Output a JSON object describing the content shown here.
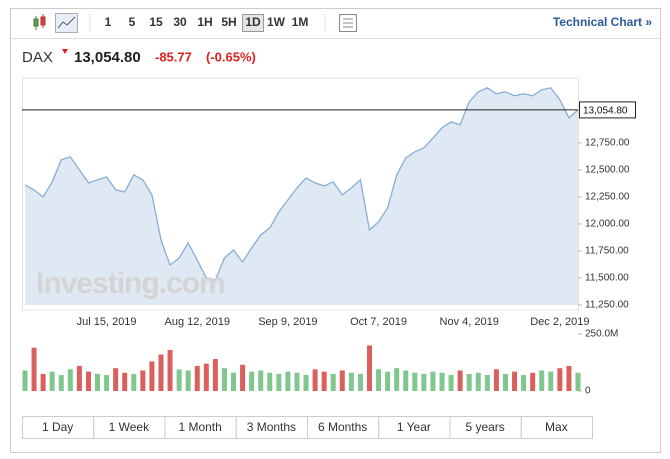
{
  "toolbar": {
    "intervals": [
      "1",
      "5",
      "15",
      "30",
      "1H",
      "5H",
      "1D",
      "1W",
      "1M"
    ],
    "selected": "1D",
    "link": "Technical Chart »"
  },
  "header": {
    "symbol": "DAX",
    "price": "13,054.80",
    "change": "-85.77",
    "change_pct": "(-0.65%)"
  },
  "ranges": [
    "1 Day",
    "1 Week",
    "1 Month",
    "3 Months",
    "6 Months",
    "1 Year",
    "5 years",
    "Max"
  ],
  "chart_data": [
    {
      "type": "line",
      "watermark": "Investing.com",
      "color": "#88aed6",
      "fill": "#dfe9f4",
      "categories": [
        null,
        null,
        null,
        null,
        null,
        null,
        null,
        null,
        null,
        "Jul 15, 2019",
        null,
        null,
        null,
        null,
        null,
        null,
        null,
        null,
        null,
        "Aug 12, 2019",
        null,
        null,
        null,
        null,
        null,
        null,
        null,
        null,
        null,
        "Sep 9, 2019",
        null,
        null,
        null,
        null,
        null,
        null,
        null,
        null,
        null,
        "Oct 7, 2019",
        null,
        null,
        null,
        null,
        null,
        null,
        null,
        null,
        null,
        "Nov 4, 2019",
        null,
        null,
        null,
        null,
        null,
        null,
        null,
        null,
        null,
        "Dec 2, 2019",
        null,
        null
      ],
      "values": [
        12361,
        12315,
        12250,
        12389,
        12593,
        12620,
        12500,
        12380,
        12407,
        12435,
        12315,
        12296,
        12454,
        12407,
        12269,
        11852,
        11620,
        11685,
        11824,
        11667,
        11500,
        11481,
        11685,
        11759,
        11648,
        11778,
        11898,
        11963,
        12111,
        12222,
        12333,
        12426,
        12380,
        12352,
        12389,
        12269,
        12333,
        12407,
        11944,
        12019,
        12148,
        12454,
        12611,
        12667,
        12704,
        12796,
        12889,
        12944,
        12917,
        13130,
        13222,
        13259,
        13204,
        13222,
        13185,
        13204,
        13185,
        13241,
        13259,
        13148,
        12981,
        13055
      ],
      "last_value": 13054.8,
      "last_label": "13,054.80",
      "ylim": [
        11250,
        13350
      ],
      "yticks": [
        {
          "value": 11250,
          "label": "11,250.00"
        },
        {
          "value": 11500,
          "label": "11,500.00"
        },
        {
          "value": 11750,
          "label": "11,750.00"
        },
        {
          "value": 12000,
          "label": "12,000.00"
        },
        {
          "value": 12250,
          "label": "12,250.00"
        },
        {
          "value": 12500,
          "label": "12,500.00"
        },
        {
          "value": 12750,
          "label": "12,750.00"
        }
      ]
    },
    {
      "type": "bar",
      "values": [
        90,
        190,
        75,
        85,
        70,
        95,
        110,
        85,
        75,
        70,
        100,
        80,
        75,
        90,
        130,
        160,
        180,
        95,
        90,
        110,
        120,
        140,
        100,
        80,
        115,
        85,
        90,
        80,
        75,
        85,
        80,
        70,
        95,
        85,
        75,
        90,
        80,
        75,
        200,
        95,
        85,
        100,
        90,
        80,
        75,
        85,
        80,
        70,
        90,
        75,
        80,
        70,
        95,
        75,
        85,
        70,
        80,
        90,
        85,
        100,
        110,
        80
      ],
      "colors": [
        "#7fc68f",
        "#d9605c",
        "#d9605c",
        "#7fc68f",
        "#7fc68f",
        "#7fc68f",
        "#d9605c",
        "#d9605c",
        "#7fc68f",
        "#7fc68f",
        "#d9605c",
        "#d9605c",
        "#7fc68f",
        "#d9605c",
        "#d9605c",
        "#d9605c",
        "#d9605c",
        "#7fc68f",
        "#7fc68f",
        "#d9605c",
        "#d9605c",
        "#d9605c",
        "#7fc68f",
        "#7fc68f",
        "#d9605c",
        "#7fc68f",
        "#7fc68f",
        "#7fc68f",
        "#7fc68f",
        "#7fc68f",
        "#7fc68f",
        "#7fc68f",
        "#d9605c",
        "#d9605c",
        "#7fc68f",
        "#d9605c",
        "#7fc68f",
        "#7fc68f",
        "#d9605c",
        "#7fc68f",
        "#7fc68f",
        "#7fc68f",
        "#7fc68f",
        "#7fc68f",
        "#7fc68f",
        "#7fc68f",
        "#7fc68f",
        "#7fc68f",
        "#d9605c",
        "#7fc68f",
        "#7fc68f",
        "#7fc68f",
        "#d9605c",
        "#7fc68f",
        "#d9605c",
        "#7fc68f",
        "#d9605c",
        "#7fc68f",
        "#7fc68f",
        "#d9605c",
        "#d9605c",
        "#7fc68f"
      ],
      "ylim": [
        0,
        250
      ],
      "yticks": [
        0,
        {
          "value": 250,
          "label": "250.0M"
        }
      ]
    }
  ]
}
